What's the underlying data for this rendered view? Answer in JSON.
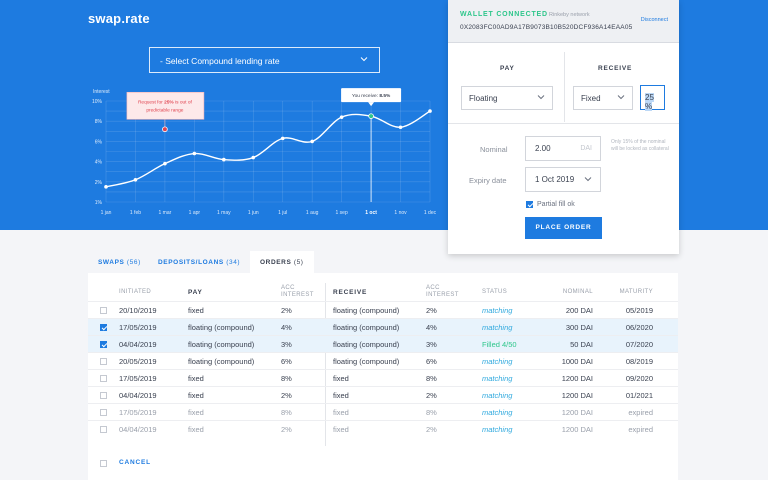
{
  "app": {
    "logo": "swap.rate"
  },
  "selector": {
    "label": "- Select Compound lending rate",
    "chevron": "chevron-down-icon"
  },
  "chart_data": {
    "type": "line",
    "ylabel": "Interest",
    "y_ticks": [
      "1%",
      "2%",
      "4%",
      "6%",
      "8%",
      "10%"
    ],
    "categories": [
      "1 jan",
      "1 feb",
      "1 mar",
      "1 apr",
      "1 may",
      "1 jun",
      "1 jul",
      "1 aug",
      "1 sep",
      "1 oct",
      "1 nov",
      "1 dec"
    ],
    "values": [
      1.5,
      2.2,
      3.8,
      4.8,
      4.2,
      4.4,
      6.3,
      6.0,
      8.4,
      8.5,
      7.4,
      9.0
    ],
    "ylim": [
      0,
      10
    ],
    "grid": true,
    "selected_category": "1 oct",
    "tooltip": {
      "prefix": "You receive:",
      "value": "8.5%"
    },
    "warning": {
      "text_a": "Request for ",
      "text_bold": "25%",
      "text_b": " is out of",
      "line2": "predictable range",
      "value": 7.2,
      "x_index": 2
    },
    "colors": {
      "line": "#ffffff",
      "marker_selected": "#2ec68b",
      "marker_warning": "#e0434f"
    }
  },
  "wallet": {
    "status": "WALLET CONNECTED",
    "network": "Rinkeby network",
    "address": "0X2083FC00AD9A17B9073B10B520DCF936A14EAA05",
    "disconnect": "Disconnect"
  },
  "order_form": {
    "pay_label": "PAY",
    "receive_label": "RECEIVE",
    "pay_value": "Floating",
    "receive_value": "Fixed",
    "rate_value": "25 %",
    "nominal_label": "Nominal",
    "nominal_value": "2.00",
    "nominal_unit": "DAI",
    "nominal_note": "Only 15% of the nominal will be locked as collateral",
    "expiry_label": "Expiry date",
    "expiry_value": "1 Oct 2019",
    "partial_label": "Partial fill ok",
    "partial_checked": true,
    "place_label": "PLACE ORDER"
  },
  "tabs": [
    {
      "label": "SWAPS",
      "count": "(56)"
    },
    {
      "label": "DEPOSITS/LOANS",
      "count": "(34)"
    },
    {
      "label": "ORDERS",
      "count": "(5)"
    }
  ],
  "table": {
    "headers": {
      "initiated": "INITIATED",
      "pay": "PAY",
      "acc1_a": "ACC",
      "acc1_b": "INTEREST",
      "receive": "RECEIVE",
      "acc2_a": "ACC",
      "acc2_b": "INTEREST",
      "status": "STATUS",
      "nominal": "NOMINAL",
      "maturity": "MATURITY"
    },
    "rows": [
      {
        "checked": false,
        "selected": false,
        "muted": false,
        "initiated": "20/10/2019",
        "pay": "fixed",
        "pay_interest": "2%",
        "receive": "floating (compound)",
        "receive_interest": "2%",
        "status": "matching",
        "status_type": "matching",
        "nominal": "200 DAI",
        "maturity": "05/2019"
      },
      {
        "checked": true,
        "selected": true,
        "muted": false,
        "initiated": "17/05/2019",
        "pay": "floating (compound)",
        "pay_interest": "4%",
        "receive": "floating (compound)",
        "receive_interest": "4%",
        "status": "matching",
        "status_type": "matching",
        "nominal": "300 DAI",
        "maturity": "06/2020"
      },
      {
        "checked": true,
        "selected": true,
        "muted": false,
        "initiated": "04/04/2019",
        "pay": "floating (compound)",
        "pay_interest": "3%",
        "receive": "floating (compound)",
        "receive_interest": "3%",
        "status": "Filled 4/50",
        "status_type": "filled",
        "nominal": "50 DAI",
        "maturity": "07/2020"
      },
      {
        "checked": false,
        "selected": false,
        "muted": false,
        "initiated": "20/05/2019",
        "pay": "floating (compound)",
        "pay_interest": "6%",
        "receive": "floating (compound)",
        "receive_interest": "6%",
        "status": "matching",
        "status_type": "matching",
        "nominal": "1000 DAI",
        "maturity": "08/2019"
      },
      {
        "checked": false,
        "selected": false,
        "muted": false,
        "initiated": "17/05/2019",
        "pay": "fixed",
        "pay_interest": "8%",
        "receive": "fixed",
        "receive_interest": "8%",
        "status": "matching",
        "status_type": "matching",
        "nominal": "1200 DAI",
        "maturity": "09/2020"
      },
      {
        "checked": false,
        "selected": false,
        "muted": false,
        "initiated": "04/04/2019",
        "pay": "fixed",
        "pay_interest": "2%",
        "receive": "fixed",
        "receive_interest": "2%",
        "status": "matching",
        "status_type": "matching",
        "nominal": "1200 DAI",
        "maturity": "01/2021"
      },
      {
        "checked": false,
        "selected": false,
        "muted": true,
        "initiated": "17/05/2019",
        "pay": "fixed",
        "pay_interest": "8%",
        "receive": "fixed",
        "receive_interest": "8%",
        "status": "matching",
        "status_type": "matching",
        "nominal": "1200 DAI",
        "maturity": "expired"
      },
      {
        "checked": false,
        "selected": false,
        "muted": true,
        "initiated": "04/04/2019",
        "pay": "fixed",
        "pay_interest": "2%",
        "receive": "fixed",
        "receive_interest": "2%",
        "status": "matching",
        "status_type": "matching",
        "nominal": "1200 DAI",
        "maturity": "expired"
      }
    ],
    "cancel_label": "CANCEL"
  }
}
